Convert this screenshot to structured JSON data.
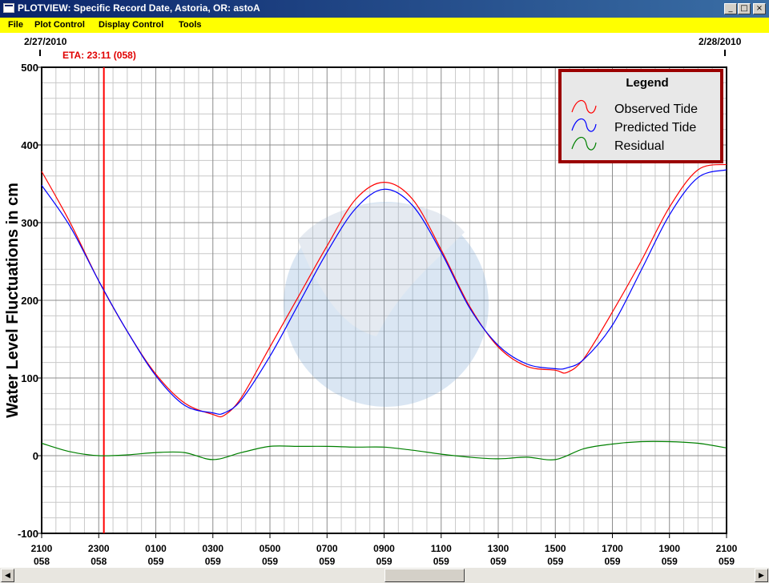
{
  "window": {
    "title": "PLOTVIEW: Specific Record Date, Astoria, OR: astoA"
  },
  "window_buttons": {
    "minimize": "_",
    "maximize": "□",
    "close": "×"
  },
  "menu": {
    "items": [
      "File",
      "Plot Control",
      "Display Control",
      "Tools"
    ]
  },
  "header": {
    "start_date": "2/27/2010",
    "end_date": "2/28/2010",
    "eta_label": "ETA: 23:11 (058)"
  },
  "colors": {
    "observed": "#ff0000",
    "predicted": "#0000ff",
    "residual": "#008000",
    "eta_line": "#ff0000",
    "menubar": "#ffff00",
    "legend_border": "#9b0000"
  },
  "scrollbar": {
    "left_arrow": "◀",
    "right_arrow": "▶"
  },
  "chart_data": {
    "type": "line",
    "ylabel": "Water Level Fluctuations in cm",
    "ylim": [
      -100,
      500
    ],
    "yticks": [
      -100,
      0,
      100,
      200,
      300,
      400,
      500
    ],
    "xlim_hours": [
      21,
      45
    ],
    "xticks": [
      {
        "hour": 21,
        "time": "2100",
        "day": "058"
      },
      {
        "hour": 23,
        "time": "2300",
        "day": "058"
      },
      {
        "hour": 25,
        "time": "0100",
        "day": "059"
      },
      {
        "hour": 27,
        "time": "0300",
        "day": "059"
      },
      {
        "hour": 29,
        "time": "0500",
        "day": "059"
      },
      {
        "hour": 31,
        "time": "0700",
        "day": "059"
      },
      {
        "hour": 33,
        "time": "0900",
        "day": "059"
      },
      {
        "hour": 35,
        "time": "1100",
        "day": "059"
      },
      {
        "hour": 37,
        "time": "1300",
        "day": "059"
      },
      {
        "hour": 39,
        "time": "1500",
        "day": "059"
      },
      {
        "hour": 41,
        "time": "1700",
        "day": "059"
      },
      {
        "hour": 43,
        "time": "1900",
        "day": "059"
      },
      {
        "hour": 45,
        "time": "2100",
        "day": "059"
      }
    ],
    "eta_hour": 23.18,
    "grid": true,
    "legend": {
      "title": "Legend",
      "position": "top-right"
    },
    "series": [
      {
        "name": "Observed Tide",
        "x": [
          21,
          22,
          23,
          24,
          25,
          26,
          27,
          27.4,
          28,
          29,
          30,
          31,
          32,
          33,
          34,
          35,
          36,
          37,
          38,
          39,
          39.4,
          40,
          41,
          42,
          43,
          44,
          45
        ],
        "values": [
          366,
          300,
          225,
          160,
          105,
          68,
          53,
          52,
          75,
          140,
          205,
          270,
          330,
          352,
          330,
          265,
          192,
          140,
          115,
          110,
          107,
          125,
          185,
          250,
          320,
          368,
          375
        ]
      },
      {
        "name": "Predicted Tide",
        "x": [
          21,
          22,
          23,
          24,
          25,
          26,
          27,
          27.4,
          28,
          29,
          30,
          31,
          32,
          33,
          34,
          35,
          36,
          37,
          38,
          39,
          39.4,
          40,
          41,
          42,
          43,
          44,
          45
        ],
        "values": [
          348,
          295,
          225,
          160,
          103,
          65,
          55,
          55,
          72,
          128,
          195,
          262,
          318,
          343,
          322,
          262,
          190,
          142,
          118,
          112,
          113,
          124,
          168,
          238,
          310,
          358,
          368
        ]
      },
      {
        "name": "Residual",
        "x": [
          21,
          22,
          23,
          24,
          25,
          26,
          27,
          28,
          29,
          30,
          31,
          32,
          33,
          34,
          35,
          36,
          37,
          38,
          39,
          40,
          41,
          42,
          43,
          44,
          45
        ],
        "values": [
          16,
          5,
          0,
          1,
          4,
          4,
          -5,
          4,
          12,
          12,
          12,
          11,
          11,
          7,
          2,
          -2,
          -4,
          -2,
          -5,
          9,
          15,
          18,
          18,
          16,
          10
        ]
      }
    ]
  }
}
